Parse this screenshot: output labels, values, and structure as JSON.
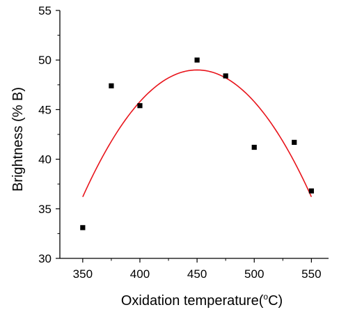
{
  "chart_data": {
    "type": "scatter",
    "xlabel": "Oxidation temperature(",
    "xlabel_sup": "o",
    "xlabel_end": "C)",
    "ylabel": "Brightness (% B)",
    "xlim": [
      330,
      565
    ],
    "ylim": [
      30,
      55
    ],
    "xticks": [
      350,
      400,
      450,
      500,
      550
    ],
    "yticks": [
      30,
      35,
      40,
      45,
      50,
      55
    ],
    "grid": false,
    "series": [
      {
        "kind": "points",
        "marker": "square",
        "color": "#000000",
        "points": [
          {
            "x": 350,
            "y": 33.1
          },
          {
            "x": 375,
            "y": 47.4
          },
          {
            "x": 400,
            "y": 45.4
          },
          {
            "x": 450,
            "y": 50.0
          },
          {
            "x": 475,
            "y": 48.4
          },
          {
            "x": 500,
            "y": 41.2
          },
          {
            "x": 535,
            "y": 41.7
          },
          {
            "x": 550,
            "y": 36.8
          }
        ]
      },
      {
        "kind": "fit",
        "color": "#e8141b",
        "x_range": [
          350,
          550
        ],
        "quadratic": {
          "vertex_x": 450,
          "vertex_y": 49.0,
          "a": -0.00128
        }
      }
    ]
  }
}
